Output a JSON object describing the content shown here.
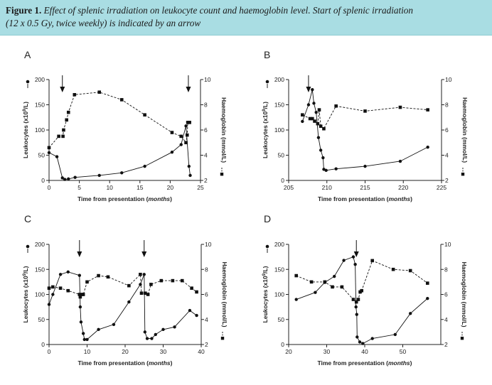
{
  "caption": {
    "label": "Figure 1.",
    "line1": "Effect of splenic irradiation on leukocyte count and haemoglobin level. Start of splenic irradiation",
    "line2": "(12 x 0.5 Gy, twice weekly) is indicated by an arrow"
  },
  "chart_data": [
    {
      "panel": "A",
      "type": "line",
      "xlabel": "Time from presentation (months)",
      "ylabel_left": "Leukocytes (x10^9/L)",
      "ylabel_right": "Haemoglobin (mmol/L)",
      "xlim": [
        0,
        25
      ],
      "xticks": [
        0,
        5,
        10,
        15,
        20,
        25
      ],
      "ylim_left": [
        0,
        200
      ],
      "yticks_left": [
        0,
        50,
        100,
        150,
        200
      ],
      "ylim_right": [
        2,
        10
      ],
      "yticks_right": [
        2,
        4,
        6,
        8,
        10
      ],
      "arrows_x": [
        2.2,
        23
      ],
      "series": [
        {
          "axis": "left",
          "marker": "circle",
          "line": "solid",
          "points": [
            [
              0,
              55
            ],
            [
              1.3,
              47
            ],
            [
              2.2,
              5
            ],
            [
              2.6,
              2
            ],
            [
              3.2,
              3
            ],
            [
              4.3,
              6
            ],
            [
              8.3,
              10
            ],
            [
              12,
              15
            ],
            [
              15.8,
              28
            ],
            [
              20.3,
              56
            ],
            [
              21.8,
              71
            ],
            [
              22.6,
              108
            ],
            [
              23.1,
              28
            ],
            [
              23.3,
              10
            ]
          ]
        },
        {
          "axis": "right",
          "marker": "square",
          "line": "dashed",
          "points": [
            [
              0,
              4.6
            ],
            [
              1.6,
              5.5
            ],
            [
              2.3,
              5.5
            ],
            [
              2.4,
              6
            ],
            [
              2.9,
              6.8
            ],
            [
              3.2,
              7.4
            ],
            [
              4.2,
              8.8
            ],
            [
              8.3,
              9.0
            ],
            [
              12,
              8.4
            ],
            [
              15.8,
              7.2
            ],
            [
              20.3,
              5.8
            ],
            [
              21.8,
              5.5
            ],
            [
              22.6,
              5.0
            ],
            [
              22.8,
              5.6
            ],
            [
              22.9,
              6.6
            ],
            [
              23.2,
              6.6
            ]
          ]
        }
      ]
    },
    {
      "panel": "B",
      "type": "line",
      "xlabel": "Time from presentation (months)",
      "ylabel_left": "Leukocytes (x10^9/L)",
      "ylabel_right": "Haemoglobin (mmol/L)",
      "xlim": [
        205,
        225
      ],
      "xticks": [
        205,
        210,
        215,
        220,
        225
      ],
      "ylim_left": [
        0,
        200
      ],
      "yticks_left": [
        0,
        50,
        100,
        150,
        200
      ],
      "ylim_right": [
        2,
        10
      ],
      "yticks_right": [
        2,
        4,
        6,
        8,
        10
      ],
      "arrows_x": [
        207.6
      ],
      "series": [
        {
          "axis": "left",
          "marker": "circle",
          "line": "solid",
          "points": [
            [
              206.8,
              117
            ],
            [
              207.6,
              150
            ],
            [
              208.1,
              180
            ],
            [
              208.3,
              153
            ],
            [
              208.6,
              135
            ],
            [
              208.9,
              85
            ],
            [
              209.2,
              60
            ],
            [
              209.5,
              45
            ],
            [
              209.6,
              22
            ],
            [
              209.9,
              20
            ],
            [
              211.2,
              23
            ],
            [
              215,
              28
            ],
            [
              219.6,
              38
            ],
            [
              223.2,
              66
            ]
          ]
        },
        {
          "axis": "right",
          "marker": "square",
          "line": "dashed",
          "points": [
            [
              206.8,
              7.2
            ],
            [
              207.8,
              6.9
            ],
            [
              208.1,
              6.9
            ],
            [
              208.4,
              6.7
            ],
            [
              208.8,
              6.5
            ],
            [
              209,
              7.6
            ],
            [
              209.2,
              6.3
            ],
            [
              209.6,
              6.1
            ],
            [
              211.2,
              7.9
            ],
            [
              215,
              7.5
            ],
            [
              219.6,
              7.8
            ],
            [
              223.2,
              7.6
            ]
          ]
        }
      ]
    },
    {
      "panel": "C",
      "type": "line",
      "xlabel": "Time from presentation (months)",
      "ylabel_left": "Leukocytes (x10^9/L)",
      "ylabel_right": "Haemoglobin (mmol/L)",
      "xlim": [
        0,
        40
      ],
      "xticks": [
        0,
        10,
        20,
        30,
        40
      ],
      "ylim_left": [
        0,
        200
      ],
      "yticks_left": [
        0,
        50,
        100,
        150,
        200
      ],
      "ylim_right": [
        2,
        10
      ],
      "yticks_right": [
        2,
        4,
        6,
        8,
        10
      ],
      "arrows_x": [
        8,
        25
      ],
      "series": [
        {
          "axis": "left",
          "marker": "circle",
          "line": "solid",
          "points": [
            [
              0,
              80
            ],
            [
              1,
              100
            ],
            [
              3,
              140
            ],
            [
              5,
              145
            ],
            [
              8,
              138
            ],
            [
              8.2,
              75
            ],
            [
              8.4,
              45
            ],
            [
              9,
              22
            ],
            [
              9.3,
              10
            ],
            [
              10,
              10
            ],
            [
              13,
              30
            ],
            [
              17,
              40
            ],
            [
              21,
              85
            ],
            [
              24,
              120
            ],
            [
              25,
              140
            ],
            [
              25.2,
              25
            ],
            [
              25.8,
              12
            ],
            [
              27,
              12
            ],
            [
              28,
              20
            ],
            [
              30,
              30
            ],
            [
              33,
              35
            ],
            [
              37,
              68
            ],
            [
              38.8,
              58
            ]
          ]
        },
        {
          "axis": "right",
          "marker": "square",
          "line": "dashed",
          "points": [
            [
              0,
              6.5
            ],
            [
              1,
              6.6
            ],
            [
              3,
              6.5
            ],
            [
              5,
              6.3
            ],
            [
              8,
              6.0
            ],
            [
              8.2,
              5.8
            ],
            [
              8.8,
              6.0
            ],
            [
              9,
              6.0
            ],
            [
              10,
              7.0
            ],
            [
              13,
              7.5
            ],
            [
              15.5,
              7.4
            ],
            [
              21,
              6.7
            ],
            [
              24,
              7.6
            ],
            [
              24.3,
              6.1
            ],
            [
              25.3,
              6.1
            ],
            [
              26,
              6.0
            ],
            [
              26.8,
              6.8
            ],
            [
              29.5,
              7.1
            ],
            [
              32.5,
              7.1
            ],
            [
              35,
              7.1
            ],
            [
              37.5,
              6.5
            ],
            [
              38.8,
              6.2
            ]
          ]
        }
      ]
    },
    {
      "panel": "D",
      "type": "line",
      "xlabel": "Time from presentation (months)",
      "ylabel_left": "Leukocytes (x10^9/L)",
      "ylabel_right": "Haemoglobin (mmol/L)",
      "xlim": [
        20,
        60
      ],
      "xticks": [
        20,
        30,
        40,
        50
      ],
      "ylim_left": [
        0,
        200
      ],
      "yticks_left": [
        0,
        50,
        100,
        150,
        200
      ],
      "ylim_right": [
        2,
        10
      ],
      "yticks_right": [
        2,
        4,
        6,
        8,
        10
      ],
      "arrows_x": [
        37.8
      ],
      "series": [
        {
          "axis": "left",
          "marker": "circle",
          "line": "solid",
          "points": [
            [
              22,
              90
            ],
            [
              27,
              104
            ],
            [
              29.5,
              124
            ],
            [
              32,
              136
            ],
            [
              34.5,
              168
            ],
            [
              37,
              175
            ],
            [
              37.5,
              160
            ],
            [
              37.7,
              75
            ],
            [
              37.9,
              60
            ],
            [
              38,
              15
            ],
            [
              38.7,
              5
            ],
            [
              39.5,
              2
            ],
            [
              42,
              12
            ],
            [
              48,
              20
            ],
            [
              52,
              62
            ],
            [
              56.5,
              92
            ]
          ]
        },
        {
          "axis": "right",
          "marker": "square",
          "line": "dashed",
          "points": [
            [
              22,
              7.5
            ],
            [
              26,
              7.0
            ],
            [
              29.5,
              7.0
            ],
            [
              31.5,
              6.6
            ],
            [
              34,
              6.6
            ],
            [
              37,
              5.6
            ],
            [
              37.8,
              5.4
            ],
            [
              38.3,
              5.6
            ],
            [
              38.8,
              6.2
            ],
            [
              39.2,
              6.3
            ],
            [
              42,
              8.7
            ],
            [
              47.5,
              8.0
            ],
            [
              52,
              7.9
            ],
            [
              56.5,
              6.9
            ]
          ]
        }
      ]
    }
  ]
}
